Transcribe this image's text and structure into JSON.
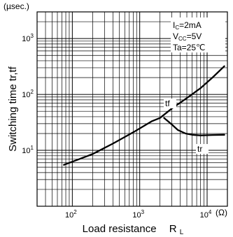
{
  "chart_data": {
    "type": "line",
    "ylabel": "Switching time tr,tf",
    "y_unit": "(µsec.)",
    "xlabel_main": "Load resistance",
    "xlabel_symbol": "R",
    "xlabel_subscript": "L",
    "x_unit": "(Ω)",
    "x_scale": "log",
    "y_scale": "log",
    "xlim": [
      30,
      20000
    ],
    "ylim": [
      1,
      3000
    ],
    "grid": true,
    "x_ticks": [
      {
        "value": 100,
        "base": "10",
        "exp": "2"
      },
      {
        "value": 1000,
        "base": "10",
        "exp": "3"
      },
      {
        "value": 10000,
        "base": "10",
        "exp": "4"
      }
    ],
    "y_ticks": [
      {
        "value": 10,
        "base": "10",
        "exp": "1"
      },
      {
        "value": 100,
        "base": "10",
        "exp": "2"
      },
      {
        "value": 1000,
        "base": "10",
        "exp": "3"
      }
    ],
    "conditions": [
      {
        "main": "I",
        "sub": "C",
        "rest": "=2mA"
      },
      {
        "main": "V",
        "sub": "CC",
        "rest": "=5V"
      },
      {
        "main": "Ta=25",
        "sub": "",
        "rest": "℃"
      }
    ],
    "series": [
      {
        "name": "tf",
        "x": [
          75,
          120,
          200,
          400,
          800,
          1500,
          2000,
          3000,
          5000,
          8000,
          12000,
          18000
        ],
        "y": [
          5.5,
          6.8,
          8.6,
          13.2,
          21,
          33,
          38,
          56,
          86,
          130,
          200,
          320
        ]
      },
      {
        "name": "tr",
        "x": [
          2300,
          2900,
          3700,
          4800,
          6000,
          8000,
          12000,
          18000
        ],
        "y": [
          38,
          30,
          23,
          20,
          19,
          18.5,
          18.8,
          19
        ]
      }
    ]
  }
}
